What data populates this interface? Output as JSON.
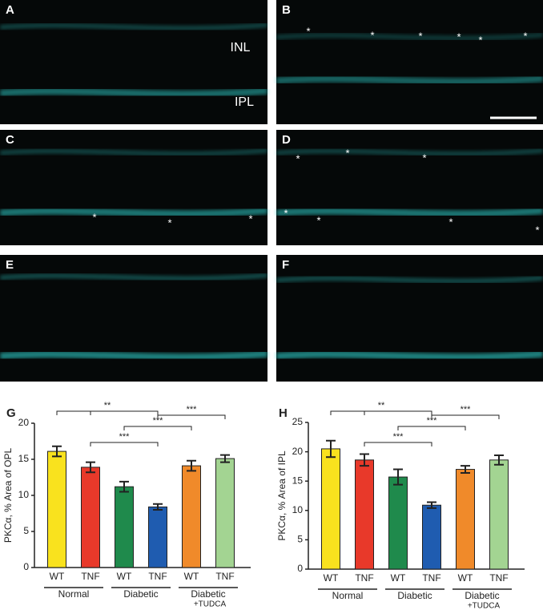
{
  "panels": [
    {
      "label": "A",
      "annotations": [
        "INL",
        "IPL"
      ]
    },
    {
      "label": "B",
      "annotations": [
        "*",
        "*",
        "*",
        "*",
        "*",
        "*"
      ]
    },
    {
      "label": "C",
      "annotations": [
        "*",
        "*",
        "*"
      ]
    },
    {
      "label": "D",
      "annotations": [
        "*",
        "*",
        "*",
        "*",
        "*",
        "*",
        "*"
      ]
    },
    {
      "label": "E",
      "annotations": []
    },
    {
      "label": "F",
      "annotations": []
    }
  ],
  "chart_data": [
    {
      "type": "bar",
      "panel_label": "G",
      "y_label": "PKCα, % Area of OPL",
      "categories": [
        "WT",
        "TNF",
        "WT",
        "TNF",
        "WT",
        "TNF"
      ],
      "groups": [
        {
          "label": "Normal"
        },
        {
          "label": "Diabetic"
        },
        {
          "label": "Diabetic",
          "sublabel": "+TUDCA"
        }
      ],
      "values": [
        16.1,
        13.9,
        11.2,
        8.4,
        14.1,
        15.1
      ],
      "errors": [
        0.7,
        0.7,
        0.7,
        0.4,
        0.7,
        0.5
      ],
      "colors": [
        "#f9e21e",
        "#e8392a",
        "#1f8a4c",
        "#1f5cb0",
        "#f08a2a",
        "#a3d492"
      ],
      "ylim": [
        0,
        20
      ],
      "yticks": [
        0,
        5,
        10,
        15,
        20
      ],
      "significance": [
        {
          "label": "**"
        },
        {
          "label": "***"
        },
        {
          "label": "***"
        },
        {
          "label": "***"
        }
      ]
    },
    {
      "type": "bar",
      "panel_label": "H",
      "y_label": "PKCα, % Area of IPL",
      "categories": [
        "WT",
        "TNF",
        "WT",
        "TNF",
        "WT",
        "TNF"
      ],
      "groups": [
        {
          "label": "Normal"
        },
        {
          "label": "Diabetic"
        },
        {
          "label": "Diabetic",
          "sublabel": "+TUDCA"
        }
      ],
      "values": [
        20.5,
        18.6,
        15.7,
        10.9,
        17.0,
        18.6
      ],
      "errors": [
        1.4,
        1.0,
        1.3,
        0.5,
        0.6,
        0.8
      ],
      "colors": [
        "#f9e21e",
        "#e8392a",
        "#1f8a4c",
        "#1f5cb0",
        "#f08a2a",
        "#a3d492"
      ],
      "ylim": [
        0,
        25
      ],
      "yticks": [
        0,
        5,
        10,
        15,
        20,
        25
      ],
      "significance": [
        {
          "label": "**"
        },
        {
          "label": "***"
        },
        {
          "label": "***"
        },
        {
          "label": "***"
        }
      ]
    }
  ]
}
